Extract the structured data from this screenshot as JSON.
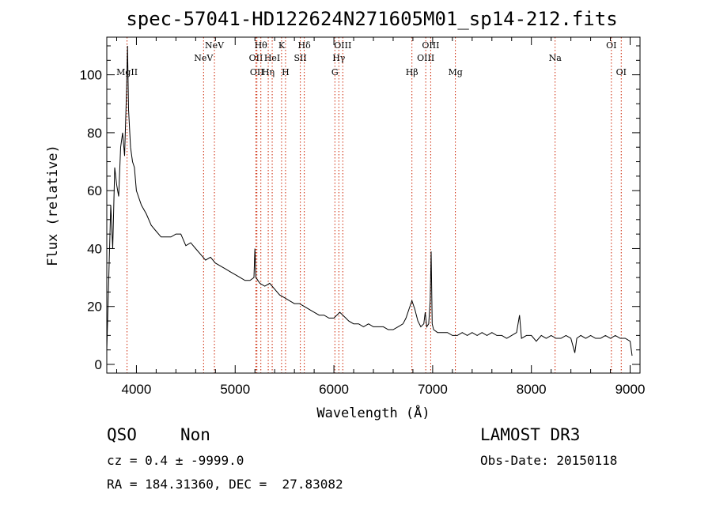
{
  "chart_data": {
    "type": "line",
    "title": "spec-57041-HD122624N271605M01_sp14-212.fits",
    "xlabel": "Wavelength (Å)",
    "ylabel": "Flux (relative)",
    "xlim": [
      3700,
      9100
    ],
    "ylim": [
      -3,
      113
    ],
    "xticks": [
      4000,
      5000,
      6000,
      7000,
      8000,
      9000
    ],
    "xtick_labels": [
      "4000",
      "5000",
      "6000",
      "7000",
      "8000",
      "9000"
    ],
    "yticks": [
      0,
      20,
      40,
      60,
      80,
      100
    ],
    "ytick_labels": [
      "0",
      "20",
      "40",
      "60",
      "80",
      "100"
    ],
    "grid": false,
    "spectrum_color": "#000000",
    "line_marker_color": "#cc2200",
    "spectral_lines": [
      {
        "label": "MgII",
        "x": 3905,
        "row": 3
      },
      {
        "label": "NeV",
        "x": 4680,
        "row": 2
      },
      {
        "label": "NeV",
        "x": 4790,
        "row": 1
      },
      {
        "label": "OII",
        "x": 5210,
        "row": 2
      },
      {
        "label": "OII",
        "x": 5220,
        "row": 3
      },
      {
        "label": "Hθ",
        "x": 5260,
        "row": 1
      },
      {
        "label": "Hη",
        "x": 5335,
        "row": 3
      },
      {
        "label": "HeI",
        "x": 5375,
        "row": 2
      },
      {
        "label": "K",
        "x": 5470,
        "row": 1
      },
      {
        "label": "H",
        "x": 5510,
        "row": 3
      },
      {
        "label": "SII",
        "x": 5660,
        "row": 2
      },
      {
        "label": "Hδ",
        "x": 5700,
        "row": 1
      },
      {
        "label": "G",
        "x": 6010,
        "row": 3
      },
      {
        "label": "Hγ",
        "x": 6050,
        "row": 2
      },
      {
        "label": "OIII",
        "x": 6090,
        "row": 1
      },
      {
        "label": "Hβ",
        "x": 6790,
        "row": 3
      },
      {
        "label": "OIII",
        "x": 6930,
        "row": 2
      },
      {
        "label": "OIII",
        "x": 6980,
        "row": 1
      },
      {
        "label": "Mg",
        "x": 7230,
        "row": 3
      },
      {
        "label": "Na",
        "x": 8240,
        "row": 2
      },
      {
        "label": "OI",
        "x": 8810,
        "row": 1
      },
      {
        "label": "OI",
        "x": 8910,
        "row": 3
      }
    ],
    "series": [
      {
        "x": [
          3700,
          3720,
          3740,
          3760,
          3780,
          3800,
          3820,
          3840,
          3860,
          3880,
          3900,
          3910,
          3920,
          3940,
          3960,
          3980,
          4000,
          4050,
          4100,
          4150,
          4200,
          4250,
          4300,
          4350,
          4400,
          4450,
          4500,
          4550,
          4600,
          4650,
          4700,
          4750,
          4800,
          4850,
          4900,
          4950,
          5000,
          5050,
          5100,
          5150,
          5190,
          5200,
          5210,
          5230,
          5250,
          5300,
          5350,
          5400,
          5450,
          5500,
          5550,
          5600,
          5650,
          5700,
          5750,
          5800,
          5850,
          5900,
          5950,
          6000,
          6030,
          6060,
          6090,
          6120,
          6150,
          6200,
          6250,
          6300,
          6350,
          6400,
          6450,
          6500,
          6550,
          6600,
          6650,
          6700,
          6730,
          6760,
          6790,
          6820,
          6850,
          6880,
          6910,
          6925,
          6940,
          6960,
          6975,
          6985,
          6995,
          7010,
          7050,
          7100,
          7150,
          7200,
          7250,
          7300,
          7350,
          7400,
          7450,
          7500,
          7550,
          7600,
          7650,
          7700,
          7750,
          7800,
          7850,
          7880,
          7900,
          7950,
          8000,
          8050,
          8100,
          8150,
          8200,
          8250,
          8300,
          8350,
          8400,
          8440,
          8460,
          8500,
          8550,
          8600,
          8650,
          8700,
          8750,
          8800,
          8850,
          8900,
          8950,
          9000,
          9020
        ],
        "y": [
          5,
          30,
          55,
          40,
          68,
          62,
          58,
          75,
          80,
          72,
          95,
          110,
          88,
          75,
          70,
          68,
          60,
          55,
          52,
          48,
          46,
          44,
          44,
          44,
          45,
          45,
          41,
          42,
          40,
          38,
          36,
          37,
          35,
          34,
          33,
          32,
          31,
          30,
          29,
          29,
          30,
          40,
          30,
          29,
          28,
          27,
          28,
          26,
          24,
          23,
          22,
          21,
          21,
          20,
          19,
          18,
          17,
          17,
          16,
          16,
          17,
          18,
          17,
          16,
          15,
          14,
          14,
          13,
          14,
          13,
          13,
          13,
          12,
          12,
          13,
          14,
          16,
          19,
          22,
          19,
          15,
          13,
          14,
          18,
          13,
          14,
          22,
          39,
          14,
          12,
          11,
          11,
          11,
          10,
          10,
          11,
          10,
          11,
          10,
          11,
          10,
          11,
          10,
          10,
          9,
          10,
          11,
          17,
          9,
          10,
          10,
          8,
          10,
          9,
          10,
          9,
          9,
          10,
          9,
          4,
          9,
          10,
          9,
          10,
          9,
          9,
          10,
          9,
          10,
          9,
          9,
          8,
          3
        ]
      }
    ]
  },
  "info": {
    "class": "QSO",
    "subclass": "Non",
    "survey": "LAMOST DR3",
    "cz": "cz = 0.4 ± -9999.0",
    "obs_date": "Obs-Date: 20150118",
    "radec": "RA = 184.31360, DEC =  27.83082"
  }
}
